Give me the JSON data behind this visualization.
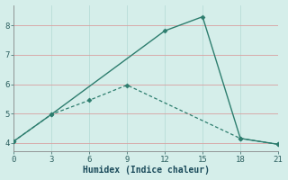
{
  "line1_x": [
    0,
    3,
    12,
    15,
    18,
    21
  ],
  "line1_y": [
    4.05,
    4.97,
    7.82,
    8.3,
    4.15,
    3.95
  ],
  "line2_x": [
    0,
    3,
    6,
    9,
    18,
    21
  ],
  "line2_y": [
    4.05,
    4.97,
    5.45,
    5.97,
    4.15,
    3.95
  ],
  "line_color": "#2d7d6e",
  "background_color": "#d5eeea",
  "grid_color_x": "#b8ddd8",
  "grid_color_y": "#d8a0a0",
  "xlabel": "Humidex (Indice chaleur)",
  "xlim": [
    0,
    21
  ],
  "ylim": [
    3.7,
    8.7
  ],
  "xticks": [
    0,
    3,
    6,
    9,
    12,
    15,
    18,
    21
  ],
  "yticks": [
    4,
    5,
    6,
    7,
    8
  ],
  "marker": "D",
  "markersize": 2.5,
  "tick_color": "#2d6060",
  "xlabel_color": "#1a4a5a",
  "xlabel_fontsize": 7,
  "tick_fontsize": 6.5,
  "linewidth1": 1.0,
  "linewidth2": 0.9
}
